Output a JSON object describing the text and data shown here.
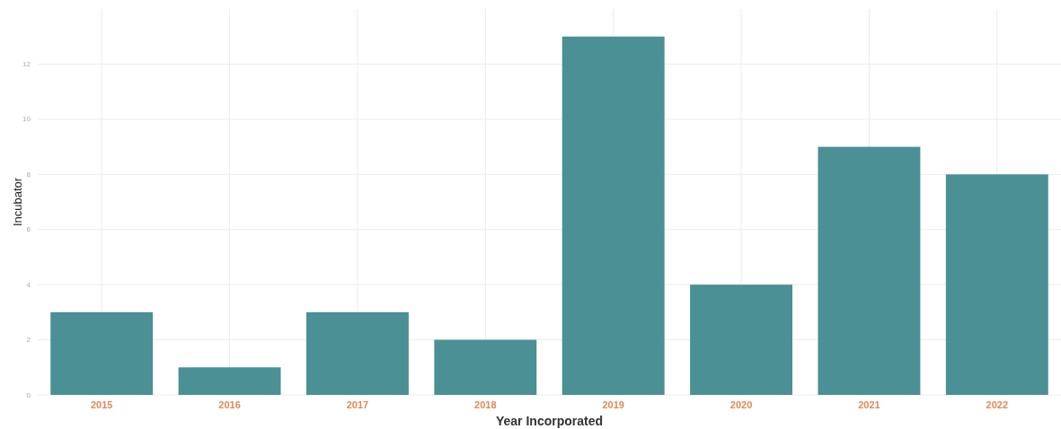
{
  "chart_data": {
    "type": "bar",
    "xlabel": "Year Incorporated",
    "ylabel": "Incubator",
    "categories": [
      "2015",
      "2016",
      "2017",
      "2018",
      "2019",
      "2020",
      "2021",
      "2022"
    ],
    "values": [
      3,
      1,
      3,
      2,
      13,
      4,
      9,
      8
    ],
    "color": "#4a9094",
    "ylim": [
      0,
      14
    ],
    "yticks": [
      0,
      2,
      4,
      6,
      8,
      10,
      12
    ],
    "grid": true
  }
}
